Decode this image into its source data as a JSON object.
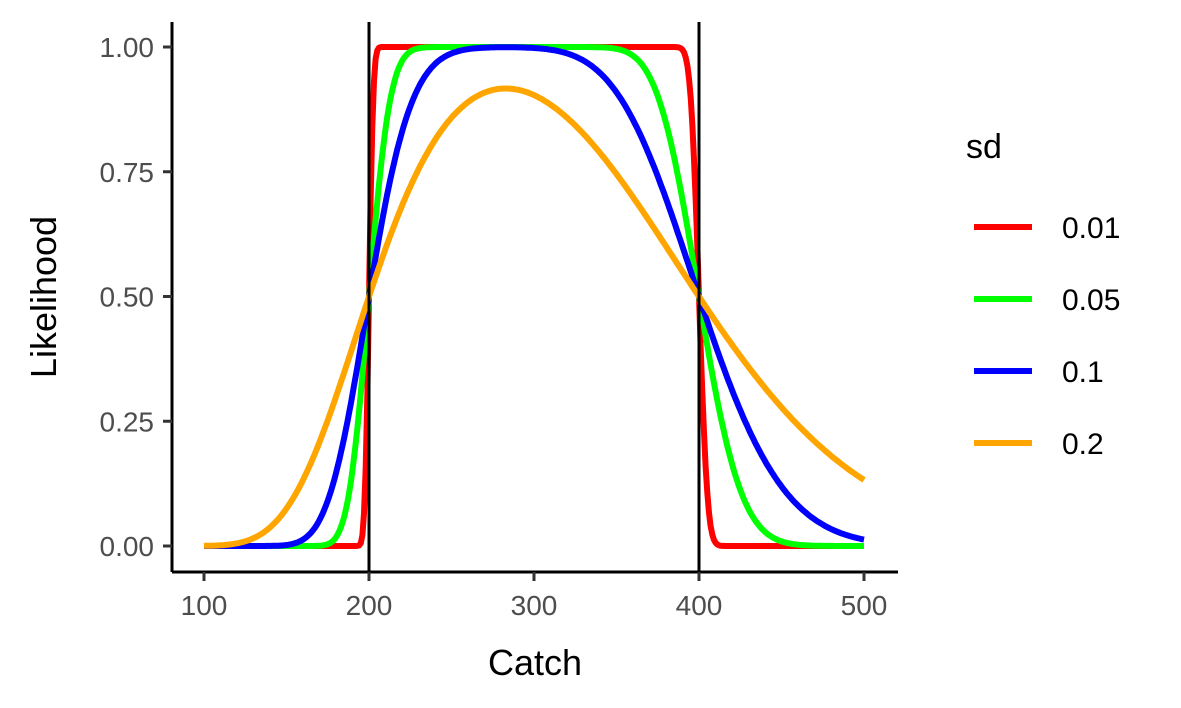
{
  "chart_data": {
    "type": "line",
    "xlabel": "Catch",
    "ylabel": "Likelihood",
    "xlim": [
      100,
      500
    ],
    "ylim": [
      0,
      1
    ],
    "x_ticks": [
      "100",
      "200",
      "300",
      "400",
      "500"
    ],
    "y_ticks": [
      "0.00",
      "0.25",
      "0.50",
      "0.75",
      "1.00"
    ],
    "grid": false,
    "legend_title": "sd",
    "legend_position": "right",
    "bounds": [
      200,
      400
    ],
    "bounds_color": "#000000",
    "series": [
      {
        "name": "0.01",
        "color": "#ff0000",
        "sd": 0.01
      },
      {
        "name": "0.05",
        "color": "#00ff00",
        "sd": 0.05
      },
      {
        "name": "0.1",
        "color": "#0000ff",
        "sd": 0.1
      },
      {
        "name": "0.2",
        "color": "#ffa500",
        "sd": 0.2
      }
    ]
  }
}
